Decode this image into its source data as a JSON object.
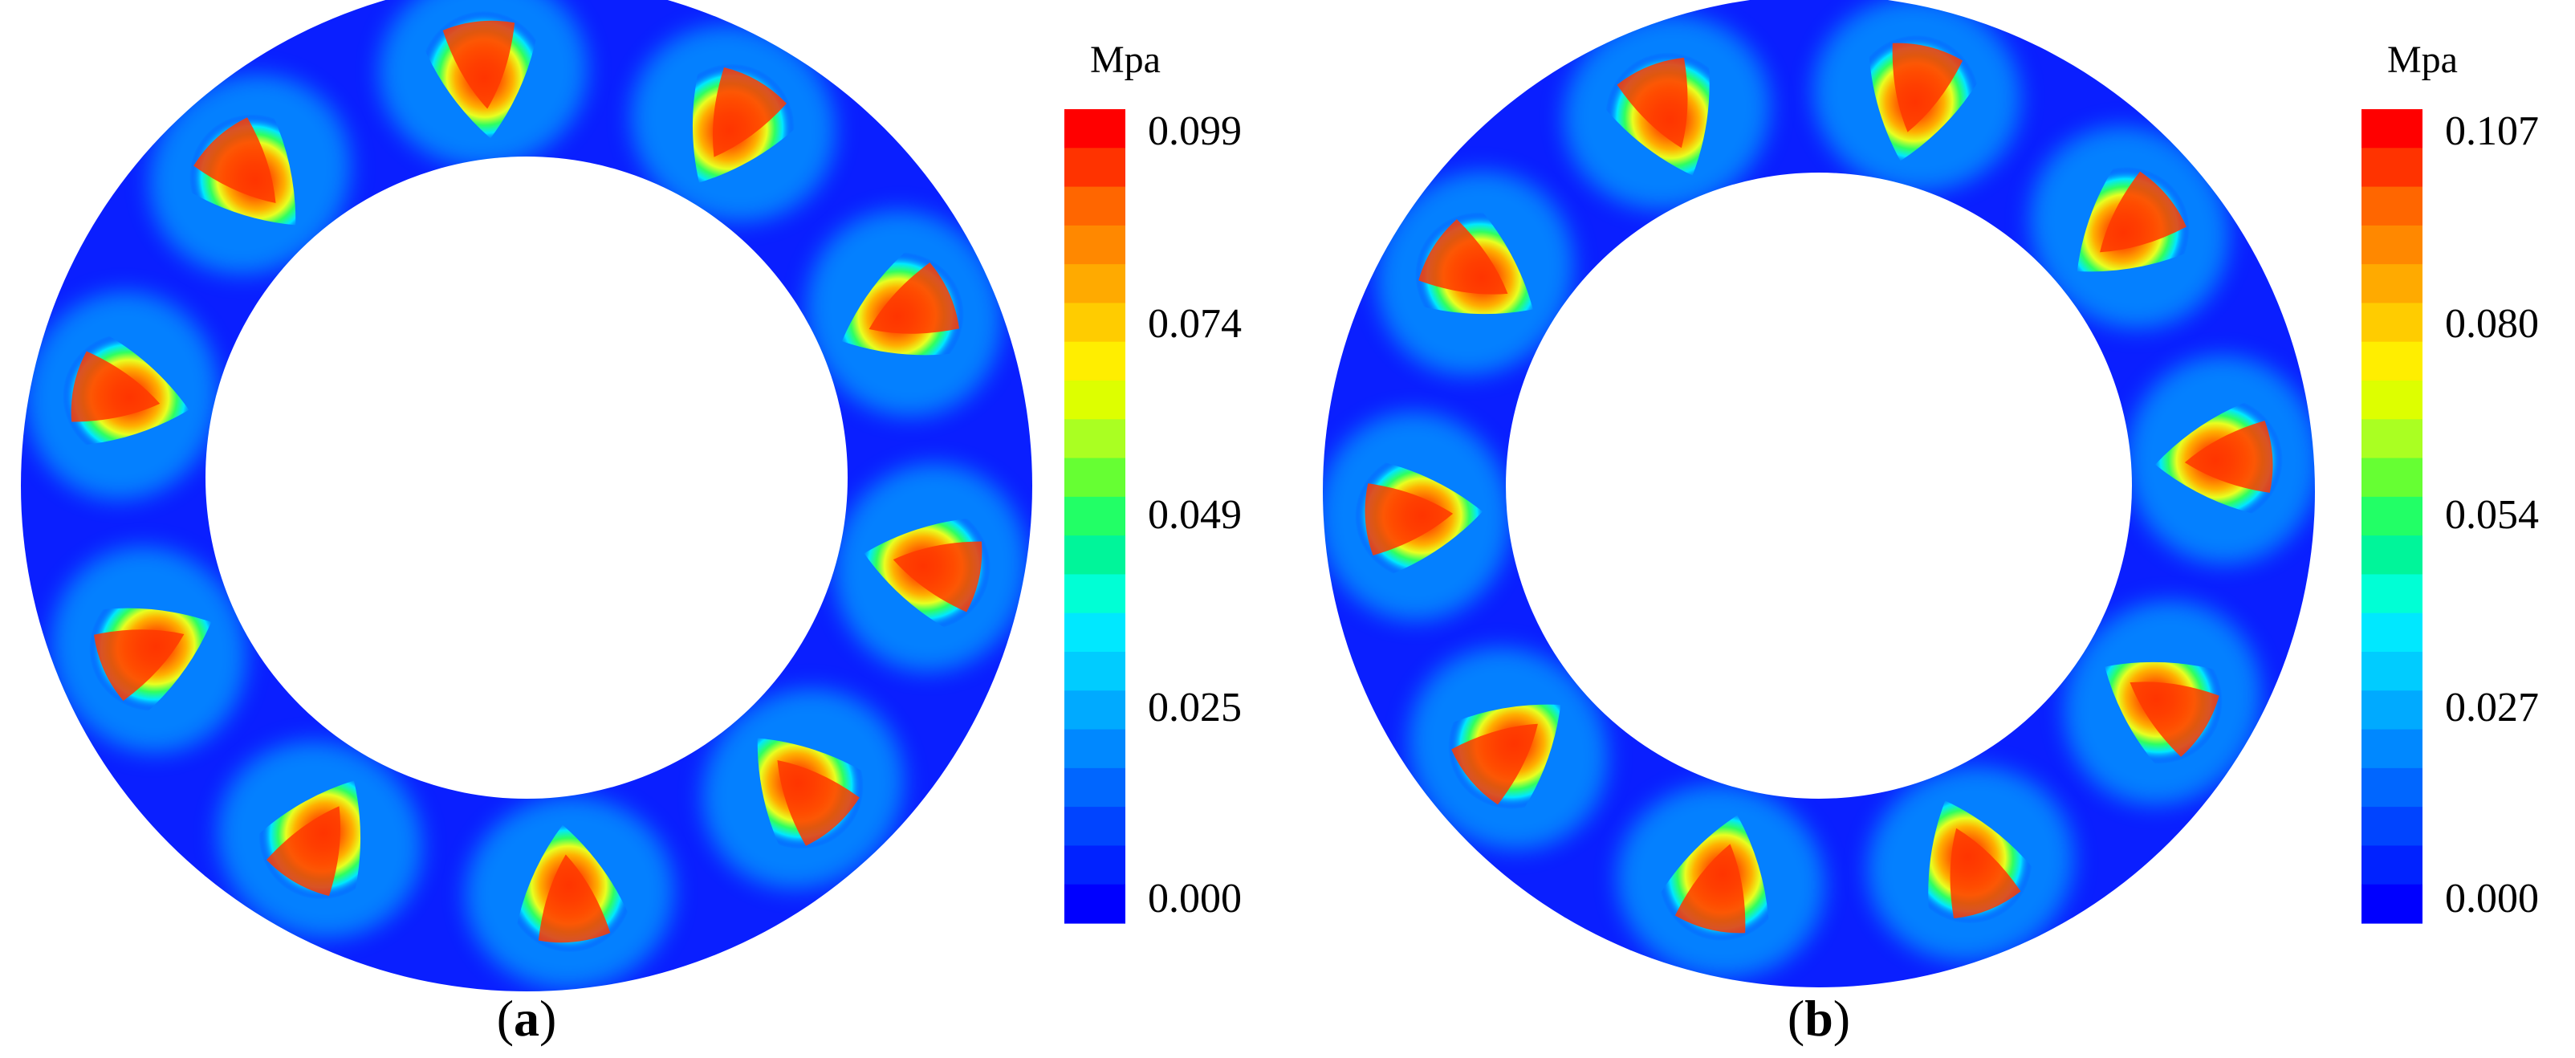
{
  "figure": {
    "panels": [
      {
        "id": "a",
        "caption_open": "(",
        "caption_letter": "a",
        "caption_close": ")",
        "pads": 10,
        "rotation_deg": 12,
        "max_value": 0.099,
        "colorbar": {
          "unit": "Mpa",
          "ticks": [
            "0.099",
            "0.074",
            "0.049",
            "0.025",
            "0.000"
          ]
        }
      },
      {
        "id": "b",
        "caption_open": "(",
        "caption_letter": "b",
        "caption_close": ")",
        "pads": 10,
        "rotation_deg": -4,
        "max_value": 0.107,
        "colorbar": {
          "unit": "Mpa",
          "ticks": [
            "0.107",
            "0.080",
            "0.054",
            "0.027",
            "0.000"
          ]
        }
      }
    ],
    "colors": {
      "background_field": "#0a1fff",
      "scale": [
        "#0000ff",
        "#0022ff",
        "#0044ff",
        "#0066ff",
        "#0088ff",
        "#00aaff",
        "#00ccff",
        "#00e8ff",
        "#00ffd5",
        "#00f59a",
        "#22ff66",
        "#66ff33",
        "#aaff22",
        "#ddff00",
        "#ffee00",
        "#ffcc00",
        "#ffaa00",
        "#ff8800",
        "#ff6600",
        "#ff3300",
        "#ff0000"
      ]
    }
  }
}
